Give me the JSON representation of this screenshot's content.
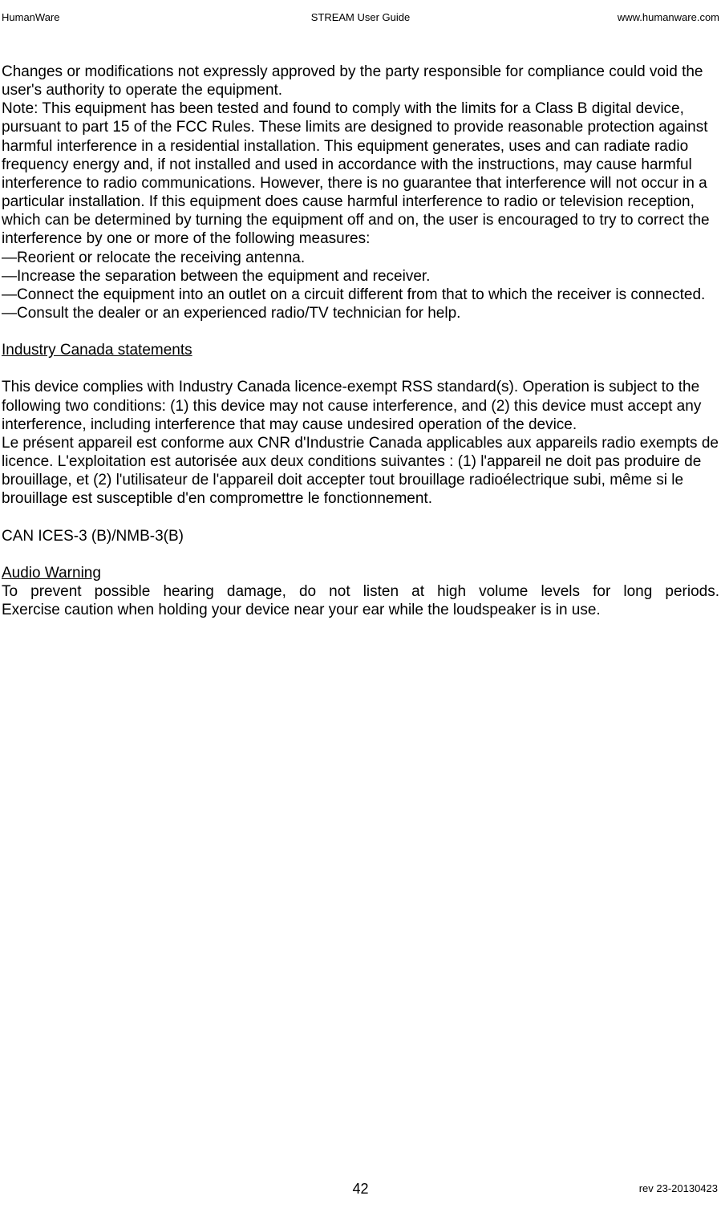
{
  "header": {
    "left": "HumanWare",
    "center": "STREAM User Guide",
    "right": "www.humanware.com"
  },
  "body": {
    "p1": "Changes or modifications not expressly approved by the party responsible for compliance could void the user's authority to operate the equipment.",
    "p2": "Note: This equipment has been tested and found to comply with the limits for a Class B digital device, pursuant to part 15 of the FCC Rules. These limits are designed to provide reasonable protection against harmful interference in a residential installation. This equipment generates, uses and can radiate radio frequency energy and, if not installed and used in accordance with the instructions, may cause harmful interference to radio communications. However, there is no guarantee that interference will not occur in a particular installation. If this equipment does cause harmful interference to radio or television reception, which can be determined by turning the equipment off and on, the user is encouraged to try to correct the interference by one or more of the following measures:",
    "m1": "—Reorient or relocate the receiving antenna.",
    "m2": "—Increase the separation between the equipment and receiver.",
    "m3": "—Connect the equipment into an outlet on a circuit different from that to which the receiver is connected.",
    "m4": "—Consult the dealer or an experienced radio/TV technician for help.",
    "h1": "Industry Canada statements",
    "p3": "This device complies with Industry Canada licence-exempt RSS standard(s). Operation is subject to the following two conditions: (1) this device may not cause interference, and (2) this device must accept any interference, including interference that may cause undesired operation of the device.",
    "p4": "Le présent appareil est conforme aux CNR d'Industrie Canada applicables aux appareils radio exempts de licence. L'exploitation est autorisée aux deux conditions suivantes : (1) l'appareil ne doit pas produire de brouillage, et (2) l'utilisateur de l'appareil doit accepter tout brouillage radioélectrique subi, même si le brouillage est susceptible d'en compromettre le fonctionnement.",
    "p5": "CAN ICES-3 (B)/NMB-3(B)",
    "h2": "Audio Warning",
    "p6a": "To prevent possible hearing damage, do not listen at high volume levels for long periods.",
    "p6b": "Exercise caution when holding your device near your ear while the loudspeaker is in use."
  },
  "footer": {
    "page": "42",
    "rev": "rev     23-20130423"
  },
  "style": {
    "text_color": "#000000",
    "background_color": "#ffffff",
    "body_fontsize": 19,
    "header_fontsize": 13,
    "font_family": "Arial"
  }
}
